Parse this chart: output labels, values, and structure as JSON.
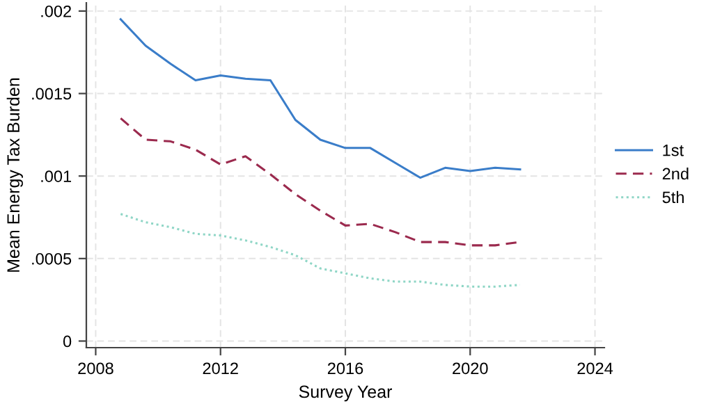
{
  "chart_data": {
    "type": "line",
    "xlabel": "Survey Year",
    "ylabel": "Mean Energy Tax Burden",
    "x": [
      2008.8,
      2009.6,
      2010.4,
      2011.2,
      2012.0,
      2012.8,
      2013.6,
      2014.4,
      2015.2,
      2016.0,
      2016.8,
      2017.6,
      2018.4,
      2019.2,
      2020.0,
      2020.8,
      2021.6
    ],
    "series": [
      {
        "name": "1st",
        "color": "#3a7dc9",
        "line_style": "solid",
        "values": [
          0.00195,
          0.00179,
          0.00168,
          0.00158,
          0.00161,
          0.00159,
          0.00158,
          0.00134,
          0.00122,
          0.00117,
          0.00117,
          0.00108,
          0.00099,
          0.00105,
          0.00103,
          0.00105,
          0.00104
        ]
      },
      {
        "name": "2nd",
        "color": "#9b2a4e",
        "line_style": "dashed",
        "values": [
          0.00135,
          0.00122,
          0.00121,
          0.00116,
          0.00107,
          0.00112,
          0.00101,
          0.00089,
          0.00079,
          0.0007,
          0.00071,
          0.00066,
          0.0006,
          0.0006,
          0.00058,
          0.00058,
          0.0006
        ]
      },
      {
        "name": "5th",
        "color": "#8fd6c6",
        "line_style": "dotted",
        "values": [
          0.00077,
          0.00072,
          0.00069,
          0.00065,
          0.00064,
          0.00061,
          0.00057,
          0.00052,
          0.00044,
          0.00041,
          0.00038,
          0.00036,
          0.00036,
          0.00034,
          0.00033,
          0.00033,
          0.00034
        ]
      }
    ],
    "xlim": [
      2007.7,
      2024.3
    ],
    "xticks": [
      2008,
      2012,
      2016,
      2020,
      2024
    ],
    "ylim": [
      -4e-05,
      0.00205
    ],
    "yticks": [
      0,
      {
        "value": 0.0005,
        "label": ".0005"
      },
      {
        "value": 0.001,
        "label": ".001"
      },
      {
        "value": 0.0015,
        "label": ".0015"
      },
      {
        "value": 0.002,
        "label": ".002"
      }
    ],
    "grid": true,
    "legend": "right",
    "marker": "none"
  }
}
